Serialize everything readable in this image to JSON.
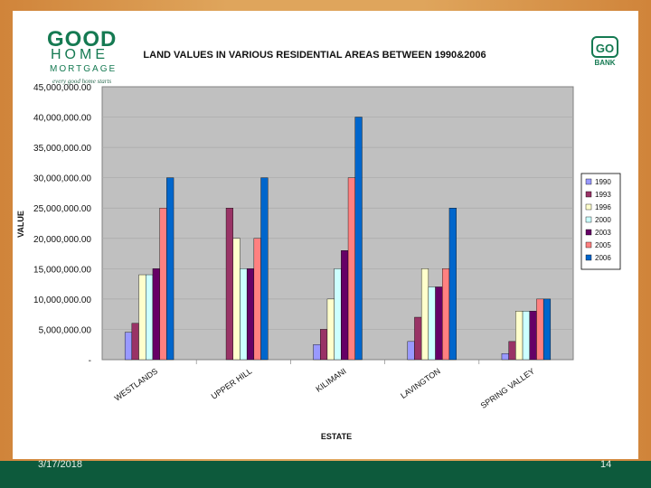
{
  "branding": {
    "logo_good": "GOOD",
    "logo_home": "HOME",
    "logo_mortgage": "MORTGAGE",
    "tagline": "every good home starts",
    "bank_badge": "GO",
    "bank_text": "BANK"
  },
  "footer": {
    "date": "3/17/2018",
    "page": "14"
  },
  "colors": {
    "plot_bg": "#c0c0c0",
    "series": [
      "#9999ff",
      "#993366",
      "#ffffcc",
      "#ccffff",
      "#660066",
      "#ff8080",
      "#0066cc"
    ]
  },
  "chart_data": {
    "type": "bar",
    "title": "LAND VALUES IN VARIOUS RESIDENTIAL AREAS BETWEEN 1990&2006",
    "xlabel": "ESTATE",
    "ylabel": "VALUE",
    "ylim": [
      0,
      45000000
    ],
    "yticks": [
      45000000,
      40000000,
      35000000,
      30000000,
      25000000,
      20000000,
      15000000,
      10000000,
      5000000,
      0
    ],
    "ytick_labels": [
      "45,000,000.00",
      "40,000,000.00",
      "35,000,000.00",
      "30,000,000.00",
      "25,000,000.00",
      "20,000,000.00",
      "15,000,000.00",
      "10,000,000.00",
      "5,000,000.00",
      "-"
    ],
    "categories": [
      "WESTLANDS",
      "UPPER HILL",
      "KILIMANI",
      "LAVINGTON",
      "SPRING VALLEY"
    ],
    "legend_position": "right",
    "series": [
      {
        "name": "1990",
        "values": [
          4500000,
          0,
          2500000,
          3000000,
          1000000
        ]
      },
      {
        "name": "1993",
        "values": [
          6000000,
          25000000,
          5000000,
          7000000,
          3000000
        ]
      },
      {
        "name": "1996",
        "values": [
          14000000,
          20000000,
          10000000,
          15000000,
          8000000
        ]
      },
      {
        "name": "2000",
        "values": [
          14000000,
          15000000,
          15000000,
          12000000,
          8000000
        ]
      },
      {
        "name": "2003",
        "values": [
          15000000,
          15000000,
          18000000,
          12000000,
          8000000
        ]
      },
      {
        "name": "2005",
        "values": [
          25000000,
          20000000,
          30000000,
          15000000,
          10000000
        ]
      },
      {
        "name": "2006",
        "values": [
          30000000,
          30000000,
          40000000,
          25000000,
          10000000
        ]
      }
    ]
  }
}
